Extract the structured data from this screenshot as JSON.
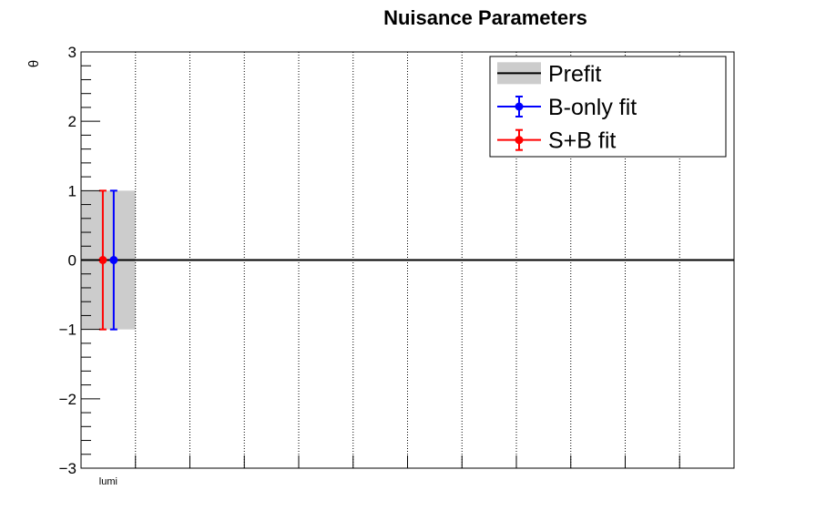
{
  "chart_data": {
    "type": "scatter",
    "title": "Nuisance Parameters",
    "xlabel": "",
    "ylabel": "θ",
    "categories": [
      "lumi"
    ],
    "n_bins": 12,
    "ylim": [
      -3,
      3
    ],
    "yticks": [
      -3,
      -2,
      -1,
      0,
      1,
      2,
      3
    ],
    "ytick_labels": [
      "−3",
      "−2",
      "−1",
      "0",
      "1",
      "2",
      "3"
    ],
    "grid": "vertical-dotted",
    "legend_position": "top-right",
    "prefit": {
      "name": "Prefit",
      "center": 0,
      "low": -1,
      "high": 1,
      "fill_color": "#cccccc",
      "line_color": "#000000"
    },
    "series": [
      {
        "name": "B-only fit",
        "color": "#0000ff",
        "values": [
          0
        ],
        "err_low": [
          1
        ],
        "err_high": [
          1
        ]
      },
      {
        "name": "S+B fit",
        "color": "#ff0000",
        "values": [
          0
        ],
        "err_low": [
          1
        ],
        "err_high": [
          1
        ]
      }
    ]
  }
}
